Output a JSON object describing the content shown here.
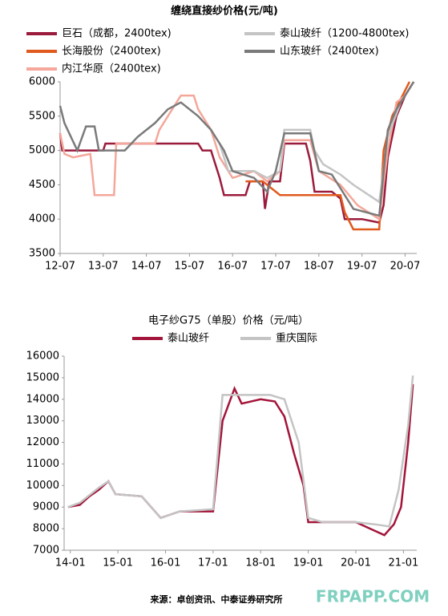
{
  "chart_data": [
    {
      "type": "line",
      "title": "缠绕直接纱价格(元/吨)",
      "xlim": [
        2012.5,
        2020.77
      ],
      "ylim": [
        3500,
        6000
      ],
      "xticks": [
        {
          "value": 2012.5,
          "label": "12-07"
        },
        {
          "value": 2013.5,
          "label": "13-07"
        },
        {
          "value": 2014.5,
          "label": "14-07"
        },
        {
          "value": 2015.5,
          "label": "15-07"
        },
        {
          "value": 2016.5,
          "label": "16-07"
        },
        {
          "value": 2017.5,
          "label": "17-07"
        },
        {
          "value": 2018.5,
          "label": "18-07"
        },
        {
          "value": 2019.5,
          "label": "19-07"
        },
        {
          "value": 2020.5,
          "label": "20-07"
        }
      ],
      "yticks": [
        3500,
        4000,
        4500,
        5000,
        5500,
        6000
      ],
      "series": [
        {
          "name": "巨石（成都，2400tex)",
          "color": "#9b1b3c",
          "x": [
            2012.5,
            2012.55,
            2013.5,
            2013.55,
            2015.7,
            2015.8,
            2016.0,
            2016.1,
            2016.2,
            2016.3,
            2016.8,
            2016.9,
            2017.2,
            2017.25,
            2017.35,
            2017.6,
            2017.7,
            2018.2,
            2018.3,
            2018.4,
            2018.8,
            2019.0,
            2019.1,
            2019.5,
            2019.9,
            2020.0,
            2020.1,
            2020.3,
            2020.5,
            2020.7
          ],
          "values": [
            5250,
            5000,
            5000,
            5100,
            5100,
            5000,
            5000,
            4800,
            4600,
            4350,
            4350,
            4550,
            4550,
            4150,
            4550,
            4550,
            5100,
            5100,
            4850,
            4400,
            4400,
            4300,
            4000,
            4000,
            3950,
            4200,
            4900,
            5500,
            5800,
            6000
          ]
        },
        {
          "name": "长海股份（2400tex)",
          "color": "#e05a1e",
          "x": [
            2016.8,
            2017.2,
            2017.6,
            2019.0,
            2019.1,
            2019.3,
            2019.9,
            2020.0,
            2020.2,
            2020.4,
            2020.6
          ],
          "values": [
            4550,
            4550,
            4350,
            4350,
            4100,
            3850,
            3850,
            5000,
            5500,
            5750,
            6000
          ]
        },
        {
          "name": "内江华原（2400tex)",
          "color": "#f4a79a",
          "x": [
            2012.5,
            2012.6,
            2012.8,
            2013.2,
            2013.3,
            2013.75,
            2013.8,
            2014.7,
            2014.8,
            2015.0,
            2015.3,
            2015.6,
            2015.7,
            2016.0,
            2016.2,
            2016.5,
            2017.0,
            2017.3,
            2017.6,
            2017.7,
            2018.3,
            2018.5,
            2019.0,
            2019.4,
            2019.9,
            2020.1,
            2020.3,
            2020.5,
            2020.7
          ],
          "values": [
            5250,
            4950,
            4900,
            4950,
            4350,
            4350,
            5100,
            5100,
            5300,
            5500,
            5800,
            5800,
            5600,
            5300,
            4900,
            4600,
            4700,
            4550,
            4700,
            5150,
            5150,
            4700,
            4500,
            4200,
            4000,
            5000,
            5700,
            5800,
            6000
          ]
        },
        {
          "name": "泰山玻纤（1200-4800tex)",
          "color": "#c4c4c4",
          "x": [
            2016.2,
            2016.4,
            2017.0,
            2017.3,
            2017.6,
            2017.7,
            2018.3,
            2018.4,
            2018.6,
            2019.0,
            2019.3,
            2019.9,
            2020.1,
            2020.4,
            2020.7
          ],
          "values": [
            5100,
            4700,
            4700,
            4600,
            4700,
            5300,
            5300,
            5000,
            4800,
            4650,
            4500,
            4250,
            5200,
            5700,
            6000
          ]
        },
        {
          "name": "山东玻纤（2400tex)",
          "color": "#7a7a7a",
          "x": [
            2012.5,
            2012.6,
            2012.9,
            2013.1,
            2013.3,
            2013.4,
            2014.0,
            2014.3,
            2014.7,
            2015.0,
            2015.3,
            2015.7,
            2016.0,
            2016.3,
            2016.5,
            2017.0,
            2017.3,
            2017.5,
            2017.7,
            2018.3,
            2018.5,
            2018.8,
            2019.0,
            2019.3,
            2019.9,
            2020.1,
            2020.3,
            2020.5,
            2020.7
          ],
          "values": [
            5650,
            5400,
            5000,
            5350,
            5350,
            5000,
            5000,
            5200,
            5400,
            5600,
            5700,
            5500,
            5300,
            5000,
            4700,
            4600,
            4400,
            4700,
            5250,
            5250,
            4700,
            4650,
            4450,
            4150,
            4050,
            5300,
            5600,
            5800,
            6000
          ]
        }
      ]
    },
    {
      "type": "line",
      "title": "电子纱G75（单股）价格（元/吨）",
      "xlim": [
        2013.87,
        2021.28
      ],
      "ylim": [
        7000,
        16000
      ],
      "xticks": [
        {
          "value": 2014.0,
          "label": "14-01"
        },
        {
          "value": 2015.0,
          "label": "15-01"
        },
        {
          "value": 2016.0,
          "label": "16-01"
        },
        {
          "value": 2017.0,
          "label": "17-01"
        },
        {
          "value": 2018.0,
          "label": "18-01"
        },
        {
          "value": 2019.0,
          "label": "19-01"
        },
        {
          "value": 2020.0,
          "label": "20-01"
        },
        {
          "value": 2021.0,
          "label": "21-01"
        }
      ],
      "yticks": [
        7000,
        8000,
        9000,
        10000,
        11000,
        12000,
        13000,
        14000,
        15000,
        16000
      ],
      "series": [
        {
          "name": "泰山玻纤",
          "color": "#a3153a",
          "x": [
            2013.95,
            2014.2,
            2014.4,
            2014.6,
            2014.8,
            2014.95,
            2015.5,
            2015.9,
            2016.3,
            2017.0,
            2017.2,
            2017.45,
            2017.6,
            2018.0,
            2018.3,
            2018.5,
            2018.7,
            2018.9,
            2019.0,
            2019.3,
            2020.0,
            2020.3,
            2020.6,
            2020.8,
            2020.95,
            2021.1,
            2021.2
          ],
          "values": [
            9000,
            9100,
            9500,
            9800,
            10200,
            9600,
            9500,
            8500,
            8800,
            8800,
            13000,
            14500,
            13800,
            14000,
            13900,
            13200,
            11500,
            10000,
            8300,
            8300,
            8300,
            8000,
            7700,
            8200,
            9000,
            12000,
            14700
          ]
        },
        {
          "name": "重庆国际",
          "color": "#c4c4c4",
          "x": [
            2013.95,
            2014.2,
            2014.6,
            2014.8,
            2014.95,
            2015.5,
            2015.9,
            2016.3,
            2017.0,
            2017.2,
            2018.2,
            2018.5,
            2018.8,
            2019.0,
            2019.3,
            2020.0,
            2020.4,
            2020.7,
            2020.9,
            2021.1,
            2021.2
          ],
          "values": [
            9000,
            9200,
            9900,
            10200,
            9600,
            9500,
            8500,
            8800,
            8900,
            14200,
            14200,
            14000,
            12000,
            8500,
            8300,
            8300,
            8200,
            8100,
            9800,
            12800,
            15100
          ]
        }
      ]
    }
  ],
  "source": "来源：卓创资讯、中泰证券研究所",
  "watermark": "FRPAPP.COM"
}
